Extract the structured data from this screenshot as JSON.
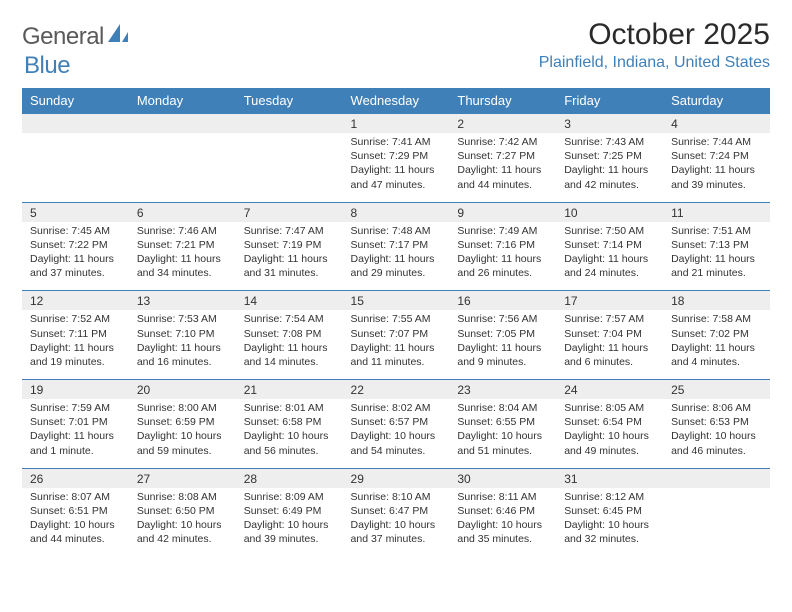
{
  "brand": {
    "word1": "General",
    "word2": "Blue",
    "logo_fill": "#4080b8"
  },
  "title": "October 2025",
  "location": "Plainfield, Indiana, United States",
  "colors": {
    "header_bg": "#4080b8",
    "header_text": "#ffffff",
    "daynum_bg": "#eeeeee",
    "row_border": "#4080b8",
    "body_text": "#333333",
    "location_text": "#4080b8"
  },
  "day_headers": [
    "Sunday",
    "Monday",
    "Tuesday",
    "Wednesday",
    "Thursday",
    "Friday",
    "Saturday"
  ],
  "weeks": [
    [
      null,
      null,
      null,
      {
        "n": "1",
        "sr": "7:41 AM",
        "ss": "7:29 PM",
        "dl": "11 hours and 47 minutes."
      },
      {
        "n": "2",
        "sr": "7:42 AM",
        "ss": "7:27 PM",
        "dl": "11 hours and 44 minutes."
      },
      {
        "n": "3",
        "sr": "7:43 AM",
        "ss": "7:25 PM",
        "dl": "11 hours and 42 minutes."
      },
      {
        "n": "4",
        "sr": "7:44 AM",
        "ss": "7:24 PM",
        "dl": "11 hours and 39 minutes."
      }
    ],
    [
      {
        "n": "5",
        "sr": "7:45 AM",
        "ss": "7:22 PM",
        "dl": "11 hours and 37 minutes."
      },
      {
        "n": "6",
        "sr": "7:46 AM",
        "ss": "7:21 PM",
        "dl": "11 hours and 34 minutes."
      },
      {
        "n": "7",
        "sr": "7:47 AM",
        "ss": "7:19 PM",
        "dl": "11 hours and 31 minutes."
      },
      {
        "n": "8",
        "sr": "7:48 AM",
        "ss": "7:17 PM",
        "dl": "11 hours and 29 minutes."
      },
      {
        "n": "9",
        "sr": "7:49 AM",
        "ss": "7:16 PM",
        "dl": "11 hours and 26 minutes."
      },
      {
        "n": "10",
        "sr": "7:50 AM",
        "ss": "7:14 PM",
        "dl": "11 hours and 24 minutes."
      },
      {
        "n": "11",
        "sr": "7:51 AM",
        "ss": "7:13 PM",
        "dl": "11 hours and 21 minutes."
      }
    ],
    [
      {
        "n": "12",
        "sr": "7:52 AM",
        "ss": "7:11 PM",
        "dl": "11 hours and 19 minutes."
      },
      {
        "n": "13",
        "sr": "7:53 AM",
        "ss": "7:10 PM",
        "dl": "11 hours and 16 minutes."
      },
      {
        "n": "14",
        "sr": "7:54 AM",
        "ss": "7:08 PM",
        "dl": "11 hours and 14 minutes."
      },
      {
        "n": "15",
        "sr": "7:55 AM",
        "ss": "7:07 PM",
        "dl": "11 hours and 11 minutes."
      },
      {
        "n": "16",
        "sr": "7:56 AM",
        "ss": "7:05 PM",
        "dl": "11 hours and 9 minutes."
      },
      {
        "n": "17",
        "sr": "7:57 AM",
        "ss": "7:04 PM",
        "dl": "11 hours and 6 minutes."
      },
      {
        "n": "18",
        "sr": "7:58 AM",
        "ss": "7:02 PM",
        "dl": "11 hours and 4 minutes."
      }
    ],
    [
      {
        "n": "19",
        "sr": "7:59 AM",
        "ss": "7:01 PM",
        "dl": "11 hours and 1 minute."
      },
      {
        "n": "20",
        "sr": "8:00 AM",
        "ss": "6:59 PM",
        "dl": "10 hours and 59 minutes."
      },
      {
        "n": "21",
        "sr": "8:01 AM",
        "ss": "6:58 PM",
        "dl": "10 hours and 56 minutes."
      },
      {
        "n": "22",
        "sr": "8:02 AM",
        "ss": "6:57 PM",
        "dl": "10 hours and 54 minutes."
      },
      {
        "n": "23",
        "sr": "8:04 AM",
        "ss": "6:55 PM",
        "dl": "10 hours and 51 minutes."
      },
      {
        "n": "24",
        "sr": "8:05 AM",
        "ss": "6:54 PM",
        "dl": "10 hours and 49 minutes."
      },
      {
        "n": "25",
        "sr": "8:06 AM",
        "ss": "6:53 PM",
        "dl": "10 hours and 46 minutes."
      }
    ],
    [
      {
        "n": "26",
        "sr": "8:07 AM",
        "ss": "6:51 PM",
        "dl": "10 hours and 44 minutes."
      },
      {
        "n": "27",
        "sr": "8:08 AM",
        "ss": "6:50 PM",
        "dl": "10 hours and 42 minutes."
      },
      {
        "n": "28",
        "sr": "8:09 AM",
        "ss": "6:49 PM",
        "dl": "10 hours and 39 minutes."
      },
      {
        "n": "29",
        "sr": "8:10 AM",
        "ss": "6:47 PM",
        "dl": "10 hours and 37 minutes."
      },
      {
        "n": "30",
        "sr": "8:11 AM",
        "ss": "6:46 PM",
        "dl": "10 hours and 35 minutes."
      },
      {
        "n": "31",
        "sr": "8:12 AM",
        "ss": "6:45 PM",
        "dl": "10 hours and 32 minutes."
      },
      null
    ]
  ],
  "labels": {
    "sunrise": "Sunrise:",
    "sunset": "Sunset:",
    "daylight": "Daylight:"
  }
}
